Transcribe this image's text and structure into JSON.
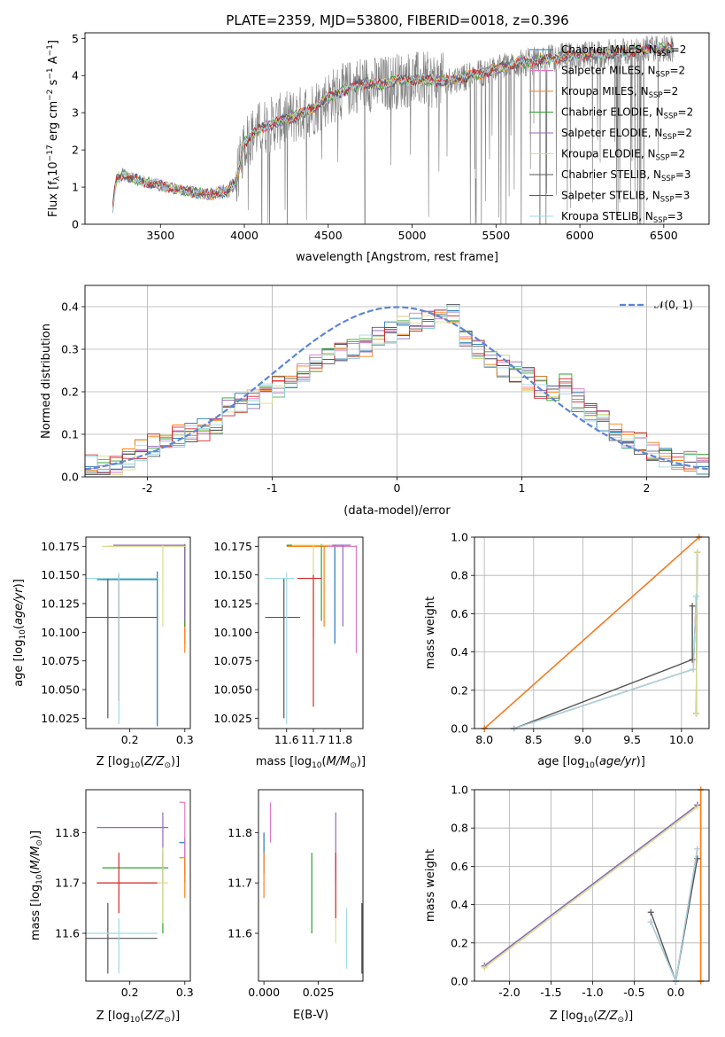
{
  "title": "PLATE=2359, MJD=53800, FIBERID=0018, z=0.396",
  "colors": {
    "Chabrier MILES": "#1f77b4",
    "Salpeter MILES": "#e377c2",
    "Kroupa MILES": "#ff7f0e",
    "Chabrier ELODIE": "#2ca02c",
    "Salpeter ELODIE": "#9467bd",
    "Kroupa ELODIE": "#dbdb8d",
    "Chabrier STELIB": "#555555",
    "Salpeter STELIB": "#d62728",
    "Kroupa STELIB": "#9edae5",
    "data": "#7f7f7f",
    "gauss": "#5b86d6"
  },
  "chart_data": [
    {
      "type": "line",
      "name": "spectrum",
      "xlabel": "wavelength [Angstrom, rest frame]",
      "ylabel": "Flux [f_λ 10^-17 erg cm^-2 s^-1 A^-1]",
      "xlim": [
        3050,
        6770
      ],
      "ylim": [
        0,
        5.15
      ],
      "xticks": [
        3500,
        4000,
        4500,
        5000,
        5500,
        6000,
        6500
      ],
      "yticks": [
        0,
        1,
        2,
        3,
        4,
        5
      ],
      "grid": false,
      "legend_position": "top-right",
      "legend": [
        {
          "label": "Chabrier MILES, N_SSP=2",
          "main": "Chabrier MILES, N",
          "sub": "SSP",
          "tail": "=2"
        },
        {
          "label": "Salpeter MILES, N_SSP=2",
          "main": "Salpeter MILES, N",
          "sub": "SSP",
          "tail": "=2"
        },
        {
          "label": "Kroupa MILES, N_SSP=2",
          "main": "Kroupa MILES, N",
          "sub": "SSP",
          "tail": "=2"
        },
        {
          "label": "Chabrier ELODIE, N_SSP=2",
          "main": "Chabrier ELODIE, N",
          "sub": "SSP",
          "tail": "=2"
        },
        {
          "label": "Salpeter ELODIE, N_SSP=2",
          "main": "Salpeter ELODIE, N",
          "sub": "SSP",
          "tail": "=2"
        },
        {
          "label": "Kroupa ELODIE, N_SSP=2",
          "main": "Kroupa ELODIE, N",
          "sub": "SSP",
          "tail": "=2"
        },
        {
          "label": "Chabrier STELIB, N_SSP=3",
          "main": "Chabrier STELIB, N",
          "sub": "SSP",
          "tail": "=3"
        },
        {
          "label": "Salpeter STELIB, N_SSP=3",
          "main": "Salpeter STELIB, N",
          "sub": "SSP",
          "tail": "=3"
        },
        {
          "label": "Kroupa STELIB, N_SSP=3",
          "main": "Kroupa STELIB, N",
          "sub": "SSP",
          "tail": "=3"
        }
      ],
      "continuum_knots": [
        [
          3215,
          0.4
        ],
        [
          3235,
          1.2
        ],
        [
          3280,
          1.35
        ],
        [
          3320,
          1.25
        ],
        [
          3400,
          1.15
        ],
        [
          3500,
          1.05
        ],
        [
          3600,
          0.95
        ],
        [
          3700,
          0.85
        ],
        [
          3800,
          0.8
        ],
        [
          3900,
          0.9
        ],
        [
          3950,
          1.1
        ],
        [
          4000,
          2.2
        ],
        [
          4100,
          2.6
        ],
        [
          4200,
          2.75
        ],
        [
          4300,
          2.9
        ],
        [
          4400,
          3.1
        ],
        [
          4500,
          3.4
        ],
        [
          4600,
          3.6
        ],
        [
          4700,
          3.8
        ],
        [
          4800,
          3.75
        ],
        [
          4900,
          3.85
        ],
        [
          5000,
          3.9
        ],
        [
          5200,
          3.85
        ],
        [
          5400,
          4.05
        ],
        [
          5600,
          4.3
        ],
        [
          5800,
          4.45
        ],
        [
          6000,
          4.55
        ],
        [
          6200,
          4.6
        ],
        [
          6400,
          4.7
        ],
        [
          6560,
          4.75
        ]
      ]
    },
    {
      "type": "line",
      "name": "residual distribution",
      "xlabel": "(data-model)/error",
      "ylabel": "Normed distribution",
      "xlim": [
        -2.5,
        2.5
      ],
      "ylim": [
        0,
        0.45
      ],
      "xticks": [
        -2,
        -1,
        0,
        1,
        2
      ],
      "yticks": [
        0.0,
        0.1,
        0.2,
        0.3,
        0.4
      ],
      "grid": true,
      "legend_position": "top-right",
      "gauss_label": "𝒩(0, 1)",
      "hist_base": [
        0.025,
        0.028,
        0.03,
        0.04,
        0.06,
        0.075,
        0.08,
        0.095,
        0.1,
        0.11,
        0.12,
        0.16,
        0.17,
        0.18,
        0.2,
        0.21,
        0.22,
        0.24,
        0.26,
        0.28,
        0.29,
        0.3,
        0.31,
        0.33,
        0.34,
        0.35,
        0.36,
        0.37,
        0.38,
        0.39,
        0.33,
        0.3,
        0.28,
        0.26,
        0.25,
        0.23,
        0.21,
        0.2,
        0.22,
        0.18,
        0.15,
        0.13,
        0.1,
        0.09,
        0.08,
        0.06,
        0.05,
        0.045,
        0.04,
        0.03
      ]
    },
    {
      "type": "scatter",
      "name": "age vs Z",
      "xlabel": "Z [log10(Z/Z⊙)]",
      "ylabel": "age [log10(age/yr)]",
      "xlim": [
        0.12,
        0.31
      ],
      "ylim": [
        10.016,
        10.183
      ],
      "xticks": [
        0.2,
        0.3
      ],
      "yticks": [
        10.025,
        10.05,
        10.075,
        10.1,
        10.125,
        10.15,
        10.175
      ],
      "points": [
        {
          "model": "Chabrier MILES",
          "x": 0.25,
          "y": 10.146,
          "xerr": [
            0.14,
            0.25
          ],
          "yerr": [
            10.018,
            10.153
          ]
        },
        {
          "model": "Salpeter MILES",
          "x": 0.3,
          "y": 10.175,
          "xerr": [
            0.16,
            0.3
          ],
          "yerr": [
            10.09,
            10.176
          ]
        },
        {
          "model": "Kroupa MILES",
          "x": 0.3,
          "y": 10.175,
          "xerr": [
            0.17,
            0.3
          ],
          "yerr": [
            10.082,
            10.176
          ]
        },
        {
          "model": "Chabrier ELODIE",
          "x": 0.3,
          "y": 10.176,
          "xerr": [
            0.18,
            0.3
          ],
          "yerr": [
            10.105,
            10.177
          ]
        },
        {
          "model": "Salpeter ELODIE",
          "x": 0.3,
          "y": 10.176,
          "xerr": [
            0.17,
            0.3
          ],
          "yerr": [
            10.11,
            10.176
          ]
        },
        {
          "model": "Kroupa ELODIE",
          "x": 0.26,
          "y": 10.175,
          "xerr": [
            0.15,
            0.3
          ],
          "yerr": [
            10.105,
            10.176
          ]
        },
        {
          "model": "Chabrier STELIB",
          "x": 0.16,
          "y": 10.113,
          "xerr": [
            0.12,
            0.25
          ],
          "yerr": [
            10.025,
            10.147
          ]
        },
        {
          "model": "Salpeter STELIB",
          "x": 0.18,
          "y": 10.147,
          "xerr": [
            0.15,
            0.25
          ],
          "yerr": [
            10.04,
            10.15
          ]
        },
        {
          "model": "Kroupa STELIB",
          "x": 0.18,
          "y": 10.147,
          "xerr": [
            0.12,
            0.25
          ],
          "yerr": [
            10.02,
            10.152
          ]
        }
      ]
    },
    {
      "type": "scatter",
      "name": "age vs mass",
      "xlabel": "mass [log10(M/M⊙)]",
      "ylabel": "",
      "xlim": [
        11.495,
        11.885
      ],
      "ylim": [
        10.016,
        10.183
      ],
      "xticks": [
        11.6,
        11.7,
        11.8
      ],
      "yticks": [
        10.025,
        10.05,
        10.075,
        10.1,
        10.125,
        10.15,
        10.175
      ],
      "points": [
        {
          "model": "Chabrier MILES",
          "x": 11.78,
          "y": 10.175,
          "xerr": [
            11.6,
            11.79
          ],
          "yerr": [
            10.09,
            10.176
          ]
        },
        {
          "model": "Salpeter MILES",
          "x": 11.86,
          "y": 10.175,
          "xerr": [
            11.7,
            11.86
          ],
          "yerr": [
            10.082,
            10.176
          ]
        },
        {
          "model": "Kroupa MILES",
          "x": 11.74,
          "y": 10.175,
          "xerr": [
            11.6,
            11.75
          ],
          "yerr": [
            10.105,
            10.176
          ]
        },
        {
          "model": "Chabrier ELODIE",
          "x": 11.73,
          "y": 10.176,
          "xerr": [
            11.6,
            11.75
          ],
          "yerr": [
            10.11,
            10.177
          ]
        },
        {
          "model": "Salpeter ELODIE",
          "x": 11.81,
          "y": 10.176,
          "xerr": [
            11.7,
            11.84
          ],
          "yerr": [
            10.105,
            10.176
          ]
        },
        {
          "model": "Kroupa ELODIE",
          "x": 11.7,
          "y": 10.176,
          "xerr": [
            11.62,
            11.77
          ],
          "yerr": [
            10.095,
            10.176
          ]
        },
        {
          "model": "Chabrier STELIB",
          "x": 11.59,
          "y": 10.113,
          "xerr": [
            11.52,
            11.65
          ],
          "yerr": [
            10.025,
            10.147
          ]
        },
        {
          "model": "Salpeter STELIB",
          "x": 11.7,
          "y": 10.147,
          "xerr": [
            11.64,
            11.73
          ],
          "yerr": [
            10.035,
            10.15
          ]
        },
        {
          "model": "Kroupa STELIB",
          "x": 11.6,
          "y": 10.147,
          "xerr": [
            11.52,
            11.63
          ],
          "yerr": [
            10.02,
            10.152
          ]
        }
      ]
    },
    {
      "type": "line",
      "name": "mass weight vs age",
      "xlabel": "age log10(age/yr)",
      "ylabel": "mass weight",
      "xlim": [
        7.9,
        10.28
      ],
      "ylim": [
        0,
        1
      ],
      "xticks": [
        8.0,
        8.5,
        9.0,
        9.5,
        10.0
      ],
      "yticks": [
        0.0,
        0.2,
        0.4,
        0.6,
        0.8,
        1.0
      ],
      "grid": true,
      "series": [
        {
          "model": "Chabrier MILES",
          "x": [
            8.0,
            10.18
          ],
          "y": [
            0.0,
            1.0
          ]
        },
        {
          "model": "Salpeter MILES",
          "x": [
            8.0,
            10.18
          ],
          "y": [
            0.0,
            1.0
          ]
        },
        {
          "model": "Kroupa MILES",
          "x": [
            8.0,
            10.18
          ],
          "y": [
            0.0,
            1.0
          ]
        },
        {
          "model": "Chabrier ELODIE",
          "x": [
            10.15,
            10.16
          ],
          "y": [
            0.08,
            0.92
          ]
        },
        {
          "model": "Salpeter ELODIE",
          "x": [
            10.15,
            10.16
          ],
          "y": [
            0.08,
            0.92
          ]
        },
        {
          "model": "Kroupa ELODIE",
          "x": [
            10.15,
            10.16
          ],
          "y": [
            0.08,
            0.92
          ]
        },
        {
          "model": "Chabrier STELIB",
          "x": [
            8.3,
            10.11,
            10.11
          ],
          "y": [
            0.0,
            0.36,
            0.64
          ]
        },
        {
          "model": "Salpeter STELIB",
          "x": [
            8.3,
            10.12,
            10.15
          ],
          "y": [
            0.0,
            0.31,
            0.69
          ]
        },
        {
          "model": "Kroupa STELIB",
          "x": [
            8.3,
            10.12,
            10.15
          ],
          "y": [
            0.0,
            0.31,
            0.69
          ]
        }
      ]
    },
    {
      "type": "scatter",
      "name": "mass vs Z",
      "xlabel": "Z [log10(Z/Z⊙)]",
      "ylabel": "mass [log10(M/M⊙)]",
      "xlim": [
        0.12,
        0.31
      ],
      "ylim": [
        11.505,
        11.885
      ],
      "xticks": [
        0.2,
        0.3
      ],
      "yticks": [
        11.6,
        11.7,
        11.8
      ],
      "points": [
        {
          "model": "Chabrier MILES",
          "x": 0.3,
          "y": 11.78,
          "xerr": [
            0.29,
            0.3
          ],
          "yerr": [
            11.72,
            11.79
          ]
        },
        {
          "model": "Salpeter MILES",
          "x": 0.3,
          "y": 11.86,
          "xerr": [
            0.29,
            0.3
          ],
          "yerr": [
            11.7,
            11.86
          ]
        },
        {
          "model": "Kroupa MILES",
          "x": 0.3,
          "y": 11.75,
          "xerr": [
            0.29,
            0.3
          ],
          "yerr": [
            11.67,
            11.75
          ]
        },
        {
          "model": "Chabrier ELODIE",
          "x": 0.26,
          "y": 11.73,
          "xerr": [
            0.15,
            0.27
          ],
          "yerr": [
            11.6,
            11.76
          ]
        },
        {
          "model": "Salpeter ELODIE",
          "x": 0.26,
          "y": 11.81,
          "xerr": [
            0.14,
            0.27
          ],
          "yerr": [
            11.7,
            11.84
          ]
        },
        {
          "model": "Kroupa ELODIE",
          "x": 0.26,
          "y": 11.7,
          "xerr": [
            0.14,
            0.27
          ],
          "yerr": [
            11.62,
            11.77
          ]
        },
        {
          "model": "Chabrier STELIB",
          "x": 0.16,
          "y": 11.59,
          "xerr": [
            0.12,
            0.25
          ],
          "yerr": [
            11.52,
            11.66
          ]
        },
        {
          "model": "Salpeter STELIB",
          "x": 0.18,
          "y": 11.7,
          "xerr": [
            0.14,
            0.25
          ],
          "yerr": [
            11.64,
            11.76
          ]
        },
        {
          "model": "Kroupa STELIB",
          "x": 0.18,
          "y": 11.6,
          "xerr": [
            0.12,
            0.25
          ],
          "yerr": [
            11.52,
            11.63
          ]
        }
      ]
    },
    {
      "type": "scatter",
      "name": "mass vs E(B-V)",
      "xlabel": "E(B-V)",
      "ylabel": "",
      "xlim": [
        -0.0025,
        0.0455
      ],
      "ylim": [
        11.505,
        11.885
      ],
      "xticks": [
        0.0,
        0.025
      ],
      "yticks": [
        11.6,
        11.7,
        11.8
      ],
      "points": [
        {
          "model": "Chabrier MILES",
          "x": 0.0,
          "y": 11.78,
          "yerr": [
            11.72,
            11.8
          ]
        },
        {
          "model": "Salpeter MILES",
          "x": 0.003,
          "y": 11.86,
          "yerr": [
            11.78,
            11.86
          ]
        },
        {
          "model": "Kroupa MILES",
          "x": 0.0,
          "y": 11.75,
          "yerr": [
            11.67,
            11.76
          ]
        },
        {
          "model": "Chabrier ELODIE",
          "x": 0.022,
          "y": 11.73,
          "yerr": [
            11.6,
            11.76
          ]
        },
        {
          "model": "Salpeter ELODIE",
          "x": 0.033,
          "y": 11.81,
          "yerr": [
            11.7,
            11.84
          ]
        },
        {
          "model": "Kroupa ELODIE",
          "x": 0.033,
          "y": 11.7,
          "yerr": [
            11.58,
            11.72
          ]
        },
        {
          "model": "Chabrier STELIB",
          "x": 0.045,
          "y": 11.59,
          "yerr": [
            11.52,
            11.66
          ]
        },
        {
          "model": "Salpeter STELIB",
          "x": 0.033,
          "y": 11.7,
          "yerr": [
            11.63,
            11.76
          ]
        },
        {
          "model": "Kroupa STELIB",
          "x": 0.038,
          "y": 11.6,
          "yerr": [
            11.53,
            11.65
          ]
        }
      ]
    },
    {
      "type": "line",
      "name": "mass weight vs Z",
      "xlabel": "Z [log10(Z/Z⊙)]",
      "ylabel": "mass weight",
      "xlim": [
        -2.42,
        0.4
      ],
      "ylim": [
        0,
        1
      ],
      "xticks": [
        -2.0,
        -1.5,
        -1.0,
        -0.5,
        0.0
      ],
      "yticks": [
        0.0,
        0.2,
        0.4,
        0.6,
        0.8,
        1.0
      ],
      "grid": true,
      "series": [
        {
          "model": "Chabrier MILES",
          "x": [
            0.3,
            0.3
          ],
          "y": [
            0.0,
            1.0
          ]
        },
        {
          "model": "Salpeter MILES",
          "x": [
            0.3,
            0.3
          ],
          "y": [
            0.0,
            1.0
          ]
        },
        {
          "model": "Kroupa MILES",
          "x": [
            0.3,
            0.3
          ],
          "y": [
            0.0,
            1.0
          ]
        },
        {
          "model": "Chabrier ELODIE",
          "x": [
            -2.3,
            0.26
          ],
          "y": [
            0.08,
            0.92
          ]
        },
        {
          "model": "Salpeter ELODIE",
          "x": [
            -2.3,
            0.26
          ],
          "y": [
            0.08,
            0.92
          ]
        },
        {
          "model": "Kroupa ELODIE",
          "x": [
            -2.3,
            0.26
          ],
          "y": [
            0.07,
            0.91
          ]
        },
        {
          "model": "Chabrier STELIB",
          "x": [
            -0.3,
            0.0,
            0.26
          ],
          "y": [
            0.36,
            0.0,
            0.64
          ]
        },
        {
          "model": "Salpeter STELIB",
          "x": [
            -0.3,
            0.0,
            0.26
          ],
          "y": [
            0.31,
            0.0,
            0.69
          ]
        },
        {
          "model": "Kroupa STELIB",
          "x": [
            -0.3,
            0.0,
            0.26
          ],
          "y": [
            0.31,
            0.0,
            0.69
          ]
        }
      ]
    }
  ]
}
